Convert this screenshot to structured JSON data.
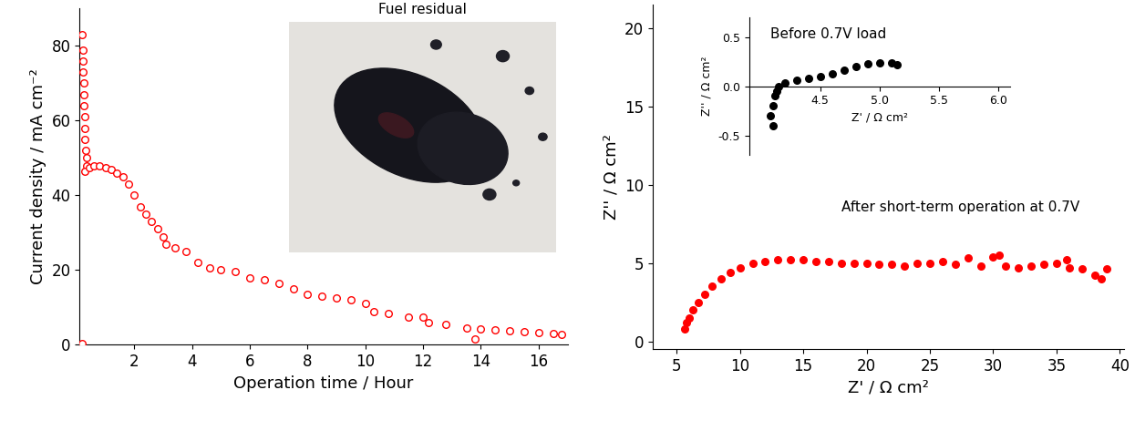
{
  "chart_data": [
    {
      "type": "scatter",
      "x_label": "Operation time / Hour",
      "y_label": "Current density / mA cm⁻²",
      "annotations": [
        "Fuel residual"
      ],
      "xlim": [
        0.1,
        17.0
      ],
      "xticks": [
        2,
        4,
        6,
        8,
        10,
        12,
        14,
        16
      ],
      "ylim": [
        0,
        90
      ],
      "yticks": [
        0,
        20,
        40,
        60,
        80
      ],
      "color": "#ff0000",
      "marker": "open_circle",
      "x": [
        0.2,
        0.21,
        0.22,
        0.23,
        0.24,
        0.25,
        0.26,
        0.27,
        0.28,
        0.3,
        0.32,
        0.34,
        0.36,
        0.3,
        0.2,
        0.45,
        0.6,
        0.8,
        1.0,
        1.2,
        1.4,
        1.6,
        1.8,
        2.0,
        2.2,
        2.4,
        2.6,
        2.8,
        3.0,
        3.1,
        3.4,
        3.8,
        4.2,
        4.6,
        5.0,
        5.5,
        6.0,
        6.5,
        7.0,
        7.5,
        8.0,
        8.5,
        9.0,
        9.5,
        10.0,
        10.3,
        10.8,
        11.5,
        12.0,
        12.2,
        12.8,
        13.5,
        13.8,
        14.0,
        14.5,
        15.0,
        15.5,
        16.0,
        16.5,
        16.8
      ],
      "values": [
        83,
        79,
        76,
        73,
        70,
        67,
        64,
        61,
        58,
        55,
        52,
        50,
        48,
        46.5,
        0.3,
        47.5,
        47.8,
        47.8,
        47.5,
        47,
        46,
        45,
        43,
        40,
        37,
        35,
        33,
        31,
        29,
        27,
        26,
        25,
        22,
        20.5,
        20,
        19.5,
        18,
        17.5,
        16.5,
        15,
        13.5,
        13,
        12.5,
        12,
        11,
        9,
        8.5,
        7.5,
        7.3,
        6,
        5.5,
        4.5,
        1.5,
        4.2,
        4,
        3.8,
        3.5,
        3.2,
        3,
        2.8
      ]
    },
    {
      "type": "scatter",
      "x_label": "Z' / Ω cm²",
      "y_label": "Z'' / Ω cm²",
      "annotations": [
        "After short-term operation at 0.7V"
      ],
      "xlim": [
        3.1,
        40.3
      ],
      "xticks": [
        5,
        10,
        15,
        20,
        25,
        30,
        35,
        40
      ],
      "ylim": [
        -0.5,
        21.5
      ],
      "yticks": [
        0,
        5,
        10,
        15,
        20
      ],
      "color": "#ff0000",
      "marker": "circle",
      "x": [
        5.6,
        5.8,
        6.0,
        6.3,
        6.7,
        7.2,
        7.8,
        8.5,
        9.2,
        10,
        11,
        12,
        13,
        14,
        15,
        16,
        17,
        18,
        19,
        20,
        21,
        22,
        23,
        24,
        25,
        26,
        27,
        28,
        29,
        30,
        30.5,
        31,
        32,
        33,
        34,
        35,
        35.8,
        36,
        37,
        38,
        38.5,
        39
      ],
      "values": [
        0.8,
        1.2,
        1.5,
        2.0,
        2.5,
        3.0,
        3.5,
        4.0,
        4.4,
        4.7,
        5.0,
        5.1,
        5.2,
        5.2,
        5.2,
        5.1,
        5.1,
        5.0,
        5.0,
        5.0,
        4.9,
        4.9,
        4.8,
        5.0,
        5.0,
        5.1,
        4.9,
        5.3,
        4.8,
        5.4,
        5.5,
        4.8,
        4.7,
        4.8,
        4.9,
        5.0,
        5.2,
        4.7,
        4.6,
        4.2,
        4.0,
        4.6
      ]
    },
    {
      "type": "scatter",
      "x_label": "Z' / Ω cm²",
      "y_label": "Z'' / Ω cm²",
      "annotations": [
        "Before 0.7V load"
      ],
      "xlim": [
        3.9,
        6.1
      ],
      "xticks": [
        {
          "value": 4.5,
          "label": "4.5"
        },
        {
          "value": 5.0,
          "label": "5.0"
        },
        {
          "value": 5.5,
          "label": "5.5"
        },
        {
          "value": 6.0,
          "label": "6.0"
        }
      ],
      "ylim": [
        -0.7,
        0.7
      ],
      "yticks": [
        {
          "value": -0.5,
          "label": "-0.5"
        },
        {
          "value": 0.0,
          "label": "0.0"
        },
        {
          "value": 0.5,
          "label": "0.5"
        }
      ],
      "color": "#000000",
      "marker": "circle",
      "x": [
        4.1,
        4.08,
        4.1,
        4.12,
        4.13,
        4.15,
        4.2,
        4.3,
        4.4,
        4.5,
        4.6,
        4.7,
        4.8,
        4.9,
        5.0,
        5.1,
        5.15
      ],
      "values": [
        -0.4,
        -0.3,
        -0.2,
        -0.1,
        -0.05,
        0.0,
        0.03,
        0.06,
        0.08,
        0.1,
        0.13,
        0.16,
        0.2,
        0.23,
        0.24,
        0.24,
        0.22
      ]
    }
  ]
}
